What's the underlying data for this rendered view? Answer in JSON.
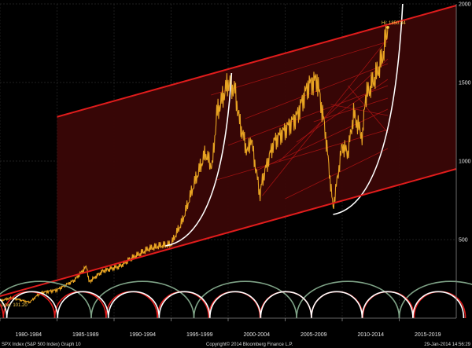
{
  "chart_data": {
    "type": "line",
    "ticker": "SPX Index (S&P 500 Index) Graph 10",
    "copyright": "Copyright© 2014 Bloomberg Finance L.P.",
    "timestamp": "29-Jan-2014 14:56:29",
    "xlim": [
      1980,
      2020
    ],
    "ylim": [
      0,
      2000
    ],
    "x_tick_labels": [
      {
        "label": "1980-1984",
        "from": 1980,
        "to": 1985
      },
      {
        "label": "1985-1989",
        "from": 1985,
        "to": 1990
      },
      {
        "label": "1990-1994",
        "from": 1990,
        "to": 1995
      },
      {
        "label": "1995-1999",
        "from": 1995,
        "to": 2000
      },
      {
        "label": "2000-2004",
        "from": 2000,
        "to": 2005
      },
      {
        "label": "2005-2009",
        "from": 2005,
        "to": 2010
      },
      {
        "label": "2010-2014",
        "from": 2010,
        "to": 2015
      },
      {
        "label": "2015-2019",
        "from": 2015,
        "to": 2020
      }
    ],
    "y_ticks": [
      {
        "value": 500,
        "label": "500"
      },
      {
        "value": 1000,
        "label": "1000"
      },
      {
        "value": 1500,
        "label": "1500"
      },
      {
        "value": 2000,
        "label": "2000"
      }
    ],
    "annotations": {
      "high": {
        "text": "Hi: 1850.84",
        "x": 2014.0,
        "y": 1850.84
      },
      "low": {
        "text": "Low: 101.20",
        "x": 1982.6,
        "y": 101.2
      }
    },
    "price_series": {
      "color": "#e8a422",
      "x": [
        1980.0,
        1981.0,
        1982.6,
        1983.5,
        1985.0,
        1986.5,
        1987.6,
        1987.8,
        1989.0,
        1990.5,
        1991.5,
        1993.0,
        1994.0,
        1995.0,
        1996.0,
        1997.0,
        1998.0,
        1998.6,
        1999.0,
        2000.0,
        2000.6,
        2001.0,
        2001.7,
        2002.0,
        2002.8,
        2003.0,
        2004.0,
        2005.0,
        2006.0,
        2007.0,
        2007.8,
        2008.5,
        2009.2,
        2010.0,
        2010.5,
        2011.0,
        2011.8,
        2012.0,
        2013.0,
        2013.5,
        2014.0
      ],
      "y": [
        110,
        130,
        101,
        160,
        180,
        240,
        330,
        230,
        300,
        330,
        380,
        440,
        460,
        470,
        620,
        850,
        1050,
        960,
        1300,
        1500,
        1450,
        1250,
        1050,
        1150,
        780,
        880,
        1120,
        1200,
        1280,
        1480,
        1520,
        1200,
        700,
        1100,
        1050,
        1300,
        1150,
        1400,
        1550,
        1650,
        1850
      ]
    },
    "trend_channel": {
      "color": "#e01c1c",
      "upper": {
        "from": [
          1980,
          1180
        ],
        "to": [
          2020,
          1990
        ]
      },
      "lower": {
        "from": [
          1980,
          140
        ],
        "to": [
          2020,
          950
        ]
      }
    },
    "parabolic_curves": {
      "color": "#ffffff",
      "curves": [
        {
          "from": [
            1994.5,
            460
          ],
          "to": [
            2000.3,
            1560
          ]
        },
        {
          "from": [
            2009.2,
            660
          ],
          "to": [
            2015.3,
            2000
          ]
        }
      ]
    },
    "cycle_arcs": [
      {
        "color": "#7fa387",
        "period": 9.0,
        "phase": 1979.0
      },
      {
        "color": "#e01c1c",
        "period": 4.5,
        "phase": 1980.3
      },
      {
        "color": "#ffffff",
        "period": 4.45,
        "phase": 1980.6
      }
    ]
  }
}
